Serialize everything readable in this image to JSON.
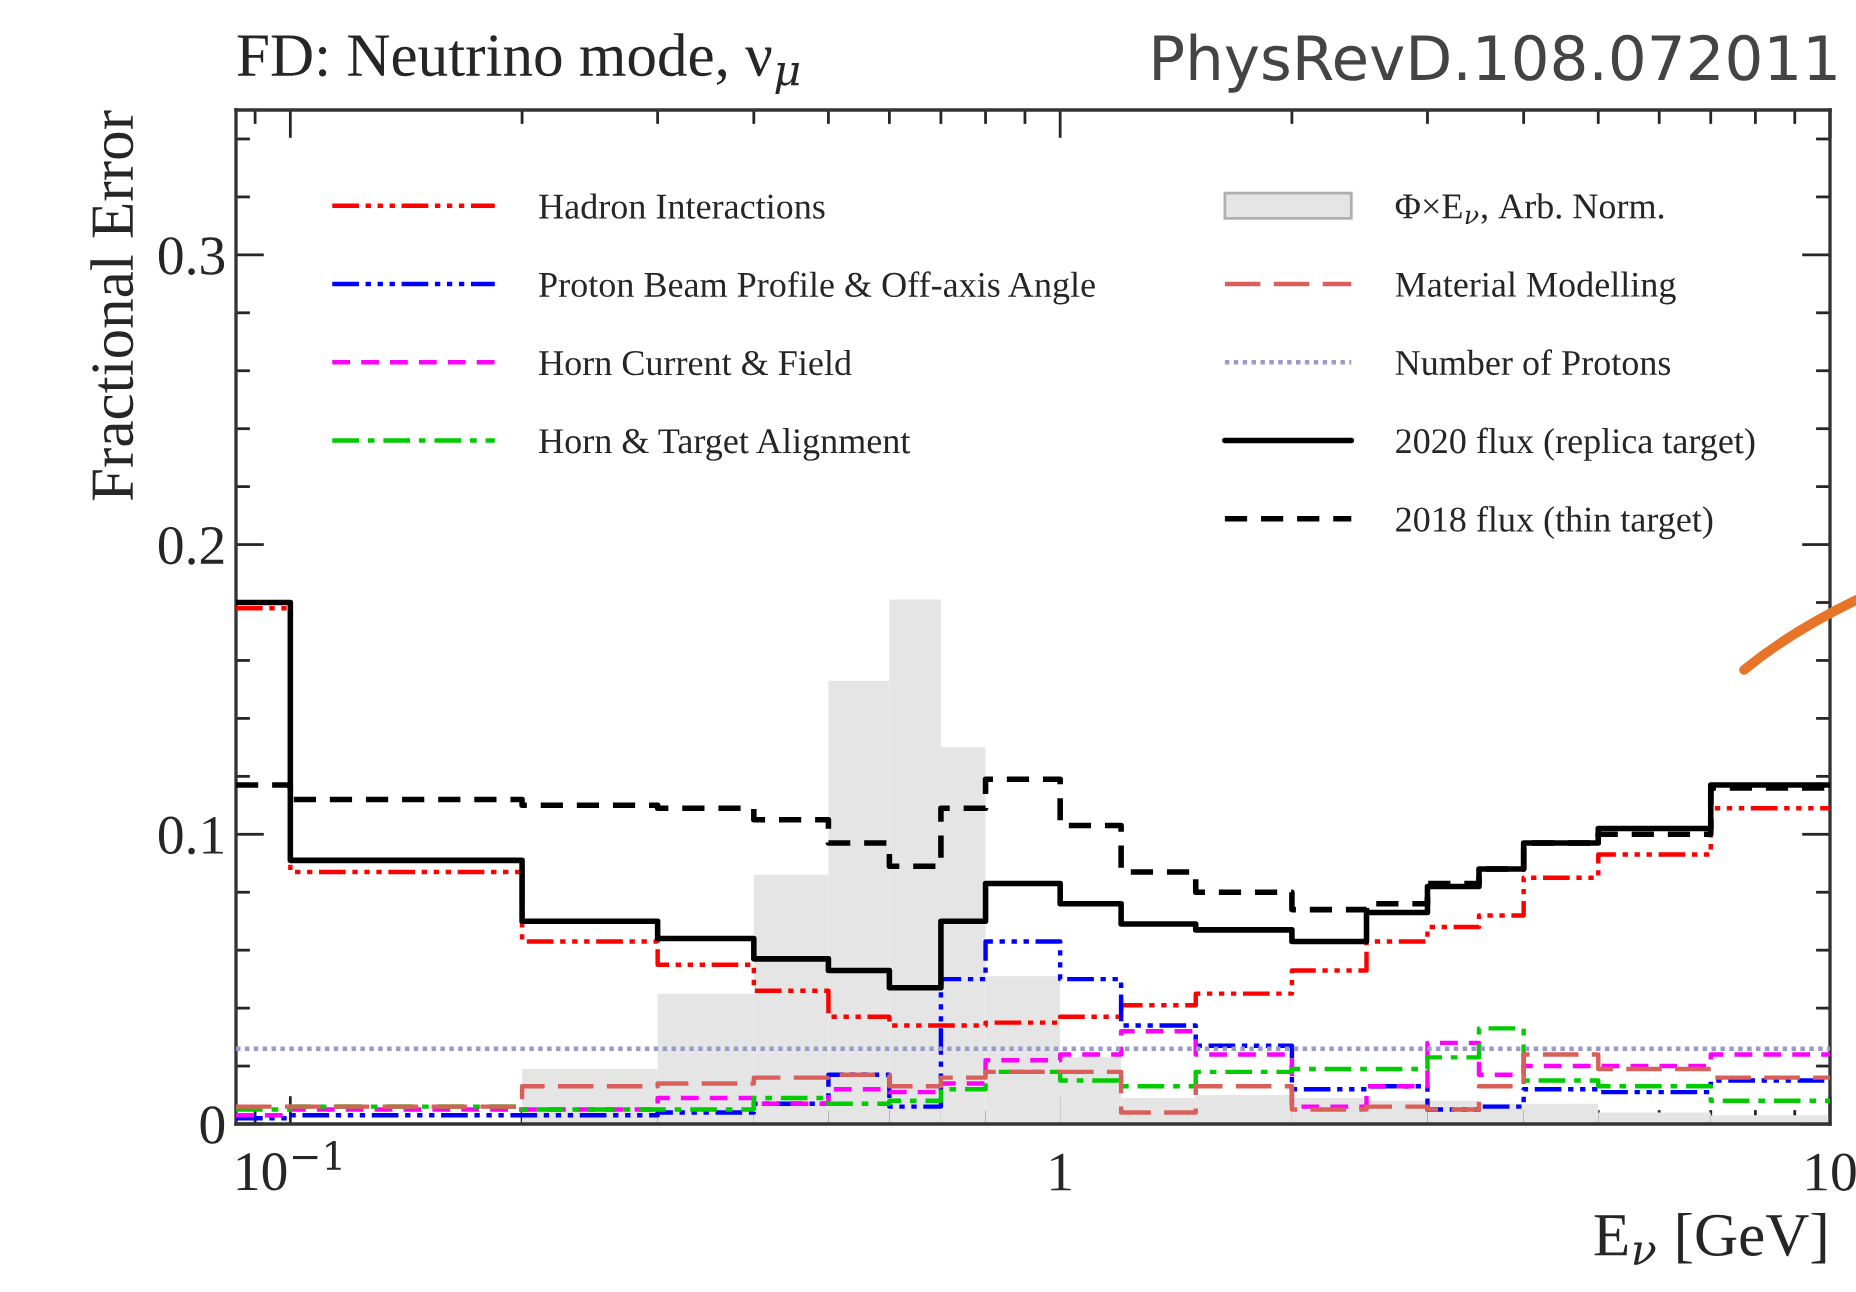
{
  "chart_data": {
    "type": "step",
    "title": "FD: Neutrino mode, ν$_{μ}$",
    "xlabel": "E$_{ν}$ [GeV]",
    "ylabel": "Fractional Error",
    "annotations": [
      "PhysRevD.108.072011"
    ],
    "x": [
      0.085,
      0.1,
      0.2,
      0.3,
      0.4,
      0.5,
      0.6,
      0.7,
      0.8,
      1.0,
      1.2,
      1.5,
      2,
      2.5,
      3,
      3.5,
      4,
      5,
      7
    ],
    "series": [
      {
        "name": "Φ×E$_{ν}$, Arb. Norm.",
        "type": "histogram",
        "color": "#e5e5e5",
        "bins": [
          0.2,
          0.3,
          0.4,
          0.5,
          0.6,
          0.7,
          0.8,
          1.0,
          1.2,
          1.5,
          2,
          2.5,
          3,
          3.5,
          4,
          5,
          7,
          10
        ],
        "values": [
          0.019,
          0.045,
          0.086,
          0.153,
          0.181,
          0.13,
          0.051,
          0.023,
          0.009,
          0.01,
          0.009,
          0.008,
          0.008,
          0.007,
          0.007,
          0.004,
          0.003
        ]
      },
      {
        "name": "Hadron Interactions",
        "color": "#ff0000",
        "line_style": "dashdotdot",
        "values": [
          0.178,
          0.087,
          0.063,
          0.055,
          0.046,
          0.037,
          0.034,
          0.034,
          0.035,
          0.037,
          0.041,
          0.045,
          0.053,
          0.063,
          0.068,
          0.072,
          0.085,
          0.093,
          0.109
        ]
      },
      {
        "name": "Proton Beam Profile & Off-axis Angle",
        "color": "#0000ff",
        "line_style": "dashdotdot",
        "values": [
          0.002,
          0.003,
          0.003,
          0.004,
          0.007,
          0.017,
          0.006,
          0.05,
          0.063,
          0.05,
          0.034,
          0.027,
          0.012,
          0.013,
          0.005,
          0.006,
          0.012,
          0.011,
          0.015
        ]
      },
      {
        "name": "Horn Current & Field",
        "color": "#ff00ff",
        "line_style": "dashed",
        "values": [
          0.003,
          0.005,
          0.005,
          0.009,
          0.007,
          0.012,
          0.011,
          0.014,
          0.022,
          0.024,
          0.032,
          0.024,
          0.006,
          0.013,
          0.028,
          0.017,
          0.02,
          0.02,
          0.024
        ]
      },
      {
        "name": "Horn & Target Alignment",
        "color": "#00cc00",
        "line_style": "dashdot",
        "values": [
          0.005,
          0.006,
          0.005,
          0.005,
          0.009,
          0.007,
          0.008,
          0.012,
          0.018,
          0.015,
          0.013,
          0.018,
          0.019,
          0.019,
          0.023,
          0.033,
          0.015,
          0.013,
          0.008
        ]
      },
      {
        "name": "Material Modelling",
        "color": "#d9605a",
        "line_style": "longdash",
        "values": [
          0.006,
          0.006,
          0.013,
          0.014,
          0.016,
          0.017,
          0.013,
          0.016,
          0.018,
          0.018,
          0.004,
          0.013,
          0.005,
          0.006,
          0.005,
          0.013,
          0.024,
          0.019,
          0.016
        ]
      },
      {
        "name": "Number of Protons",
        "color": "#9999cc",
        "line_style": "dotted",
        "values": [
          0.026,
          0.026,
          0.026,
          0.026,
          0.026,
          0.026,
          0.026,
          0.026,
          0.026,
          0.026,
          0.026,
          0.026,
          0.026,
          0.026,
          0.026,
          0.026,
          0.026,
          0.026,
          0.026
        ]
      },
      {
        "name": "2020 flux (replica target)",
        "color": "#000000",
        "line_style": "solid",
        "values": [
          0.18,
          0.091,
          0.07,
          0.064,
          0.057,
          0.053,
          0.047,
          0.07,
          0.083,
          0.076,
          0.069,
          0.067,
          0.063,
          0.073,
          0.082,
          0.088,
          0.097,
          0.102,
          0.117
        ]
      },
      {
        "name": "2018 flux (thin target)",
        "color": "#000000",
        "line_style": "dashed",
        "values": [
          0.117,
          0.112,
          0.11,
          0.109,
          0.105,
          0.097,
          0.089,
          0.109,
          0.119,
          0.103,
          0.087,
          0.08,
          0.074,
          0.076,
          0.083,
          0.088,
          0.097,
          0.1,
          0.116
        ]
      }
    ],
    "log": "x",
    "xlim": [
      0.085,
      10
    ],
    "xticks": [
      {
        "value": 0.1,
        "label": "10$^{−1}$"
      },
      1,
      10
    ],
    "ylim": [
      0,
      0.35
    ],
    "yticks": [
      0,
      0.1,
      0.2,
      0.3
    ],
    "grid": false,
    "legend": "top"
  }
}
